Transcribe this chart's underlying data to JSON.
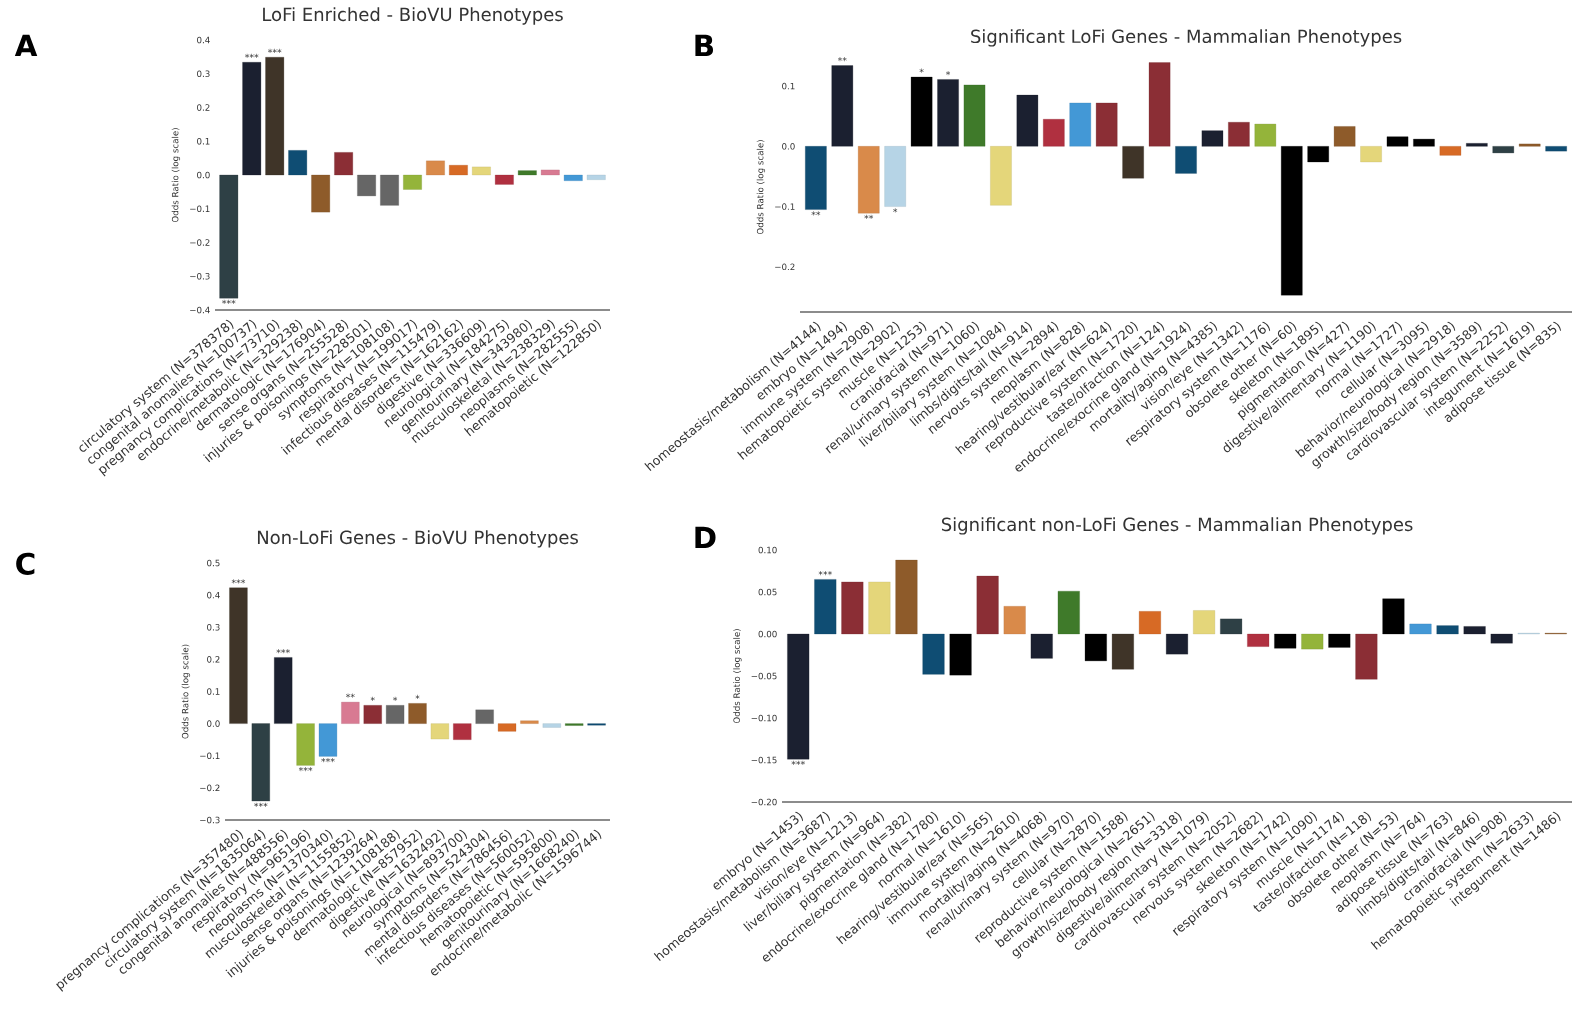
{
  "chart_data": [
    {
      "type": "bar",
      "title": "LoFi Enriched - BioVU Phenotypes",
      "ylabel": "Odds Ratio (log scale)",
      "annotations": [
        "A"
      ],
      "categories": [
        "circulatory system (N=378378)",
        "congenital anomalies (N=100737)",
        "pregnancy complications (N=73710)",
        "endocrine/metabolic (N=329238)",
        "dermatologic (N=176904)",
        "sense organs (N=255528)",
        "injuries & poisonings (N=228501)",
        "symptoms (N=108108)",
        "respiratory (N=199017)",
        "infectious diseases (N=115479)",
        "mental disorders (N=162162)",
        "digestive (N=336609)",
        "neurological (N=184275)",
        "genitourinary (N=343980)",
        "musculoskeletal (N=238329)",
        "neoplasms (N=282555)",
        "hematopoietic (N=122850)"
      ],
      "values": [
        -0.365,
        0.334,
        0.349,
        0.073,
        -0.11,
        0.067,
        -0.062,
        -0.09,
        -0.043,
        0.042,
        0.029,
        0.024,
        -0.028,
        0.013,
        0.015,
        -0.017,
        -0.014
      ],
      "colors": [
        "#2e4045",
        "#1b2030",
        "#3f3428",
        "#0f4d73",
        "#8e5b2a",
        "#8b2e35",
        "#666666",
        "#666666",
        "#94b43a",
        "#d98a4a",
        "#d76a25",
        "#e4d67a",
        "#b03040",
        "#3f7a2a",
        "#d87a92",
        "#4398d6",
        "#b6d4e6"
      ],
      "value_labels": [
        "***",
        "***",
        "***",
        null,
        null,
        null,
        null,
        null,
        null,
        null,
        null,
        null,
        null,
        null,
        null,
        null,
        null
      ],
      "ylim": [
        -0.4,
        0.4
      ],
      "yticks": [
        {
          "value": -0.4,
          "label": "−0.4"
        },
        {
          "value": -0.3,
          "label": "−0.3"
        },
        {
          "value": -0.2,
          "label": "−0.2"
        },
        {
          "value": -0.1,
          "label": "−0.1"
        },
        {
          "value": 0,
          "label": "0.0"
        },
        {
          "value": 0.1,
          "label": "0.1"
        },
        {
          "value": 0.2,
          "label": "0.2"
        },
        {
          "value": 0.3,
          "label": "0.3"
        },
        {
          "value": 0.4,
          "label": "0.4"
        }
      ]
    },
    {
      "type": "bar",
      "title": "Significant LoFi Genes - Mammalian Phenotypes",
      "ylabel": "Odds Ratio (log scale)",
      "annotations": [
        "B"
      ],
      "categories": [
        "homeostasis/metabolism (N=4144)",
        "embryo (N=1494)",
        "immune system (N=2908)",
        "hematopoietic system (N=2902)",
        "muscle (N=1253)",
        "craniofacial (N=971)",
        "renal/urinary system (N=1060)",
        "liver/biliary system (N=1084)",
        "limbs/digits/tail (N=914)",
        "nervous system (N=2894)",
        "neoplasm (N=828)",
        "hearing/vestibular/ear (N=624)",
        "reproductive system (N=1720)",
        "taste/olfaction (N=124)",
        "endocrine/exocrine gland (N=1924)",
        "mortality/aging (N=4385)",
        "vision/eye (N=1342)",
        "respiratory system (N=1176)",
        "obsolete other (N=60)",
        "skeleton (N=1895)",
        "pigmentation (N=427)",
        "digestive/alimentary (N=1190)",
        "normal (N=1727)",
        "cellular (N=3095)",
        "behavior/neurological (N=2918)",
        "growth/size/body region (N=3589)",
        "cardiovascular system (N=2252)",
        "integument (N=1619)",
        "adipose tissue (N=835)"
      ],
      "values": [
        -0.105,
        0.134,
        -0.111,
        -0.1,
        0.115,
        0.111,
        0.102,
        -0.098,
        0.085,
        0.045,
        0.072,
        0.072,
        -0.053,
        0.139,
        -0.045,
        0.026,
        0.04,
        0.037,
        -0.247,
        -0.026,
        0.033,
        -0.026,
        0.016,
        0.012,
        -0.015,
        0.005,
        -0.011,
        0.004,
        -0.008
      ],
      "colors": [
        "#0f4d73",
        "#1b2030",
        "#d98a4a",
        "#b6d4e6",
        "#000000",
        "#1b2030",
        "#3f7a2a",
        "#e4d67a",
        "#1b2030",
        "#b03040",
        "#4398d6",
        "#8b2e35",
        "#3f3428",
        "#8b2e35",
        "#0f4d73",
        "#1b2030",
        "#8b2e35",
        "#94b43a",
        "#000000",
        "#000000",
        "#8e5b2a",
        "#e4d67a",
        "#000000",
        "#000000",
        "#d76a25",
        "#1b2030",
        "#2e4045",
        "#8e5b2a",
        "#0f4d73"
      ],
      "value_labels": [
        "**",
        "**",
        "**",
        "*",
        "*",
        "*",
        null,
        null,
        null,
        null,
        null,
        null,
        null,
        null,
        null,
        null,
        null,
        null,
        null,
        null,
        null,
        null,
        null,
        null,
        null,
        null,
        null,
        null,
        null
      ],
      "ylim": [
        -0.275,
        0.14
      ],
      "yticks": [
        {
          "value": -0.2,
          "label": "−0.2"
        },
        {
          "value": -0.1,
          "label": "−0.1"
        },
        {
          "value": 0,
          "label": "0.0"
        },
        {
          "value": 0.1,
          "label": "0.1"
        }
      ]
    },
    {
      "type": "bar",
      "title": "Non-LoFi Genes - BioVU Phenotypes",
      "ylabel": "Odds Ratio (log scale)",
      "annotations": [
        "C"
      ],
      "categories": [
        "pregnancy complications (N=357480)",
        "circulatory system (N=1835064)",
        "congenital anomalies (N=488556)",
        "respiratory (N=965196)",
        "neoplasms (N=1370340)",
        "musculoskeletal (N=1155852)",
        "sense organs (N=1239264)",
        "injuries & poisonings (N=1108188)",
        "dermatologic (N=857952)",
        "digestive (N=1632492)",
        "neurological (N=893700)",
        "symptoms (N=524304)",
        "mental disorders (N=786456)",
        "infectious diseases (N=560052)",
        "hematopoietic (N=595800)",
        "genitourinary (N=1668240)",
        "endocrine/metabolic (N=1596744)"
      ],
      "values": [
        0.423,
        -0.241,
        0.206,
        -0.13,
        -0.102,
        0.067,
        0.057,
        0.057,
        0.063,
        -0.048,
        -0.05,
        0.043,
        -0.024,
        0.009,
        -0.012,
        -0.006,
        -0.005
      ],
      "colors": [
        "#3f3428",
        "#2e4045",
        "#1b2030",
        "#94b43a",
        "#4398d6",
        "#d87a92",
        "#8b2e35",
        "#666666",
        "#8e5b2a",
        "#e4d67a",
        "#b03040",
        "#666666",
        "#d76a25",
        "#d98a4a",
        "#b6d4e6",
        "#3f7a2a",
        "#0f4d73"
      ],
      "value_labels": [
        "***",
        "***",
        "***",
        "***",
        "***",
        "**",
        "*",
        "*",
        "*",
        null,
        null,
        null,
        null,
        null,
        null,
        null,
        null
      ],
      "ylim": [
        -0.3,
        0.5
      ],
      "yticks": [
        {
          "value": -0.3,
          "label": "−0.3"
        },
        {
          "value": -0.2,
          "label": "−0.2"
        },
        {
          "value": -0.1,
          "label": "−0.1"
        },
        {
          "value": 0,
          "label": "0.0"
        },
        {
          "value": 0.1,
          "label": "0.1"
        },
        {
          "value": 0.2,
          "label": "0.2"
        },
        {
          "value": 0.3,
          "label": "0.3"
        },
        {
          "value": 0.4,
          "label": "0.4"
        },
        {
          "value": 0.5,
          "label": "0.5"
        }
      ]
    },
    {
      "type": "bar",
      "title": "Significant non-LoFi Genes - Mammalian Phenotypes",
      "ylabel": "Odds Ratio (log scale)",
      "annotations": [
        "D"
      ],
      "categories": [
        "embryo (N=1453)",
        "homeostasis/metabolism (N=3687)",
        "vision/eye (N=1213)",
        "liver/biliary system (N=964)",
        "pigmentation (N=382)",
        "endocrine/exocrine gland (N=1780)",
        "normal (N=1610)",
        "hearing/vestibular/ear (N=565)",
        "immune system (N=2610)",
        "mortality/aging (N=4068)",
        "renal/urinary system (N=970)",
        "cellular (N=2870)",
        "reproductive system (N=1588)",
        "behavior/neurological (N=2651)",
        "growth/size/body region (N=3318)",
        "digestive/alimentary (N=1079)",
        "cardiovascular system (N=2052)",
        "nervous system (N=2682)",
        "skeleton (N=1742)",
        "respiratory system (N=1090)",
        "muscle (N=1174)",
        "taste/olfaction (N=118)",
        "obsolete other (N=53)",
        "neoplasm (N=764)",
        "adipose tissue (N=763)",
        "limbs/digits/tail (N=846)",
        "craniofacial (N=908)",
        "hematopoietic system (N=2633)",
        "integument (N=1486)"
      ],
      "values": [
        -0.149,
        0.065,
        0.062,
        0.062,
        0.088,
        -0.048,
        -0.049,
        0.069,
        0.033,
        -0.029,
        0.051,
        -0.032,
        -0.042,
        0.027,
        -0.024,
        0.028,
        0.018,
        -0.015,
        -0.017,
        -0.018,
        -0.016,
        -0.054,
        0.042,
        0.012,
        0.01,
        0.009,
        -0.011,
        0.001,
        0.001
      ],
      "colors": [
        "#1b2030",
        "#0f4d73",
        "#8b2e35",
        "#e4d67a",
        "#8e5b2a",
        "#0f4d73",
        "#000000",
        "#8b2e35",
        "#d98a4a",
        "#1b2030",
        "#3f7a2a",
        "#000000",
        "#3f3428",
        "#d76a25",
        "#1b2030",
        "#e4d67a",
        "#2e4045",
        "#b03040",
        "#000000",
        "#94b43a",
        "#000000",
        "#8b2e35",
        "#000000",
        "#4398d6",
        "#0f4d73",
        "#1b2030",
        "#1b2030",
        "#b6d4e6",
        "#8e5b2a"
      ],
      "value_labels": [
        "***",
        "***",
        null,
        null,
        null,
        null,
        null,
        null,
        null,
        null,
        null,
        null,
        null,
        null,
        null,
        null,
        null,
        null,
        null,
        null,
        null,
        null,
        null,
        null,
        null,
        null,
        null,
        null,
        null
      ],
      "ylim": [
        -0.2,
        0.1
      ],
      "yticks": [
        {
          "value": -0.2,
          "label": "−0.20"
        },
        {
          "value": -0.15,
          "label": "−0.15"
        },
        {
          "value": -0.1,
          "label": "−0.10"
        },
        {
          "value": -0.05,
          "label": "−0.05"
        },
        {
          "value": 0,
          "label": "0.00"
        },
        {
          "value": 0.05,
          "label": "0.05"
        },
        {
          "value": 0.1,
          "label": "0.10"
        }
      ]
    }
  ]
}
